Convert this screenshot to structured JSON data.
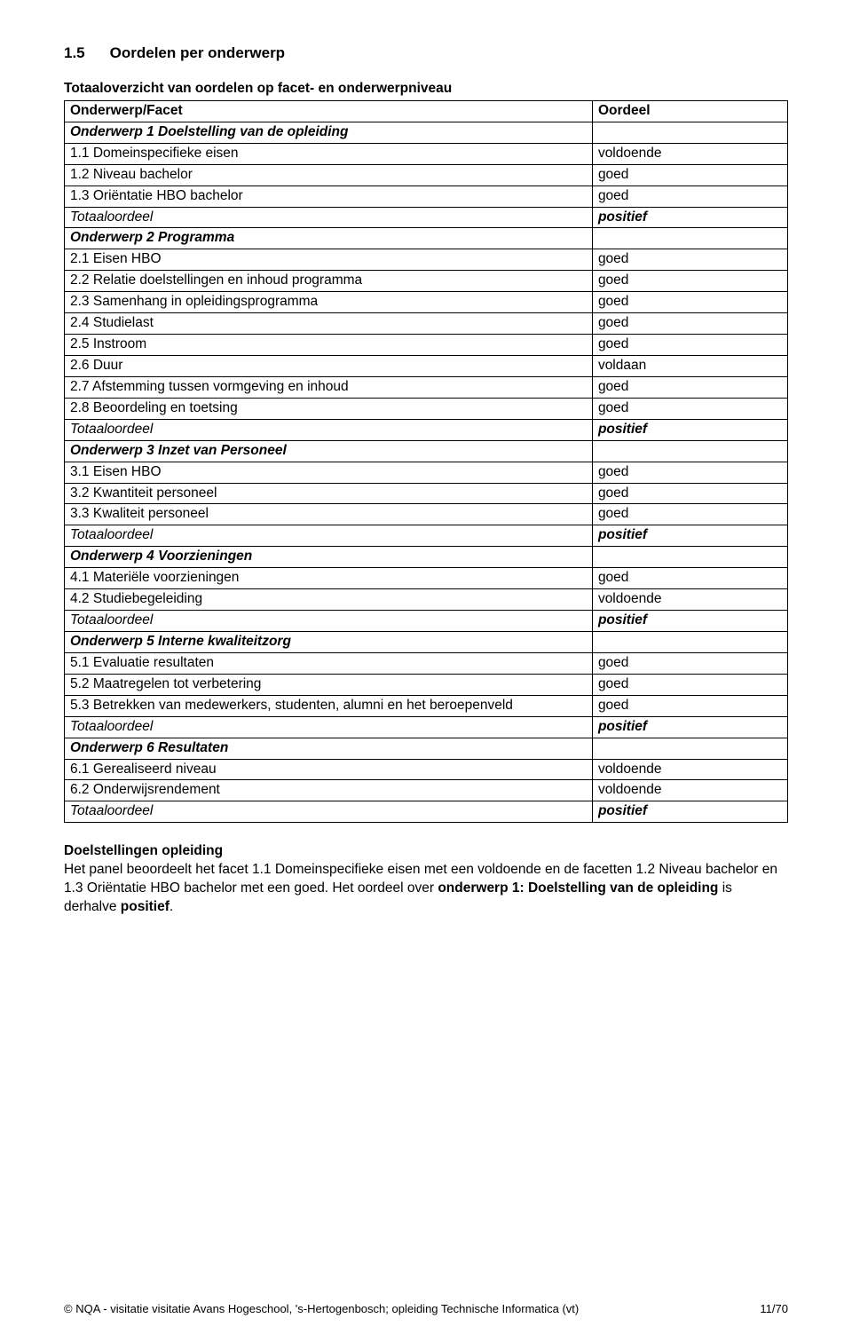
{
  "heading": {
    "num": "1.5",
    "title": "Oordelen per onderwerp"
  },
  "tableCaption": "Totaaloverzicht van oordelen op facet- en onderwerpniveau",
  "tableHeader": {
    "c1": "Onderwerp/Facet",
    "c2": "Oordeel"
  },
  "rows": [
    {
      "c1": "Onderwerp 1 Doelstelling van de opleiding",
      "c2": "",
      "c1cls": "bolditalic"
    },
    {
      "c1": "1.1 Domeinspecifieke eisen",
      "c2": "voldoende"
    },
    {
      "c1": "1.2 Niveau bachelor",
      "c2": "goed"
    },
    {
      "c1": "1.3 Oriëntatie HBO bachelor",
      "c2": "goed"
    },
    {
      "c1": "Totaaloordeel",
      "c2": "positief",
      "c1cls": "italic",
      "c2cls": "bolditalic"
    },
    {
      "c1": "Onderwerp 2 Programma",
      "c2": "",
      "c1cls": "bolditalic"
    },
    {
      "c1": "2.1 Eisen HBO",
      "c2": "goed"
    },
    {
      "c1": "2.2 Relatie doelstellingen en inhoud programma",
      "c2": "goed"
    },
    {
      "c1": "2.3 Samenhang in opleidingsprogramma",
      "c2": "goed"
    },
    {
      "c1": "2.4 Studielast",
      "c2": "goed"
    },
    {
      "c1": "2.5 Instroom",
      "c2": "goed"
    },
    {
      "c1": "2.6 Duur",
      "c2": "voldaan"
    },
    {
      "c1": "2.7 Afstemming tussen vormgeving en inhoud",
      "c2": "goed"
    },
    {
      "c1": "2.8 Beoordeling en toetsing",
      "c2": "goed"
    },
    {
      "c1": "Totaaloordeel",
      "c2": "positief",
      "c1cls": "italic",
      "c2cls": "bolditalic"
    },
    {
      "c1": "Onderwerp 3 Inzet van Personeel",
      "c2": "",
      "c1cls": "bolditalic"
    },
    {
      "c1": "3.1 Eisen HBO",
      "c2": "goed"
    },
    {
      "c1": "3.2 Kwantiteit personeel",
      "c2": "goed"
    },
    {
      "c1": "3.3 Kwaliteit personeel",
      "c2": "goed"
    },
    {
      "c1": "Totaaloordeel",
      "c2": "positief",
      "c1cls": "italic",
      "c2cls": "bolditalic"
    },
    {
      "c1": "Onderwerp 4 Voorzieningen",
      "c2": "",
      "c1cls": "bolditalic"
    },
    {
      "c1": "4.1 Materiële voorzieningen",
      "c2": "goed"
    },
    {
      "c1": "4.2 Studiebegeleiding",
      "c2": "voldoende"
    },
    {
      "c1": "Totaaloordeel",
      "c2": "positief",
      "c1cls": "italic",
      "c2cls": "bolditalic"
    },
    {
      "c1": "Onderwerp 5 Interne kwaliteitzorg",
      "c2": "",
      "c1cls": "bolditalic"
    },
    {
      "c1": "5.1 Evaluatie resultaten",
      "c2": "goed"
    },
    {
      "c1": "5.2 Maatregelen tot verbetering",
      "c2": "goed"
    },
    {
      "c1": "5.3 Betrekken van medewerkers, studenten, alumni en het beroepenveld",
      "c2": "goed"
    },
    {
      "c1": "Totaaloordeel",
      "c2": "positief",
      "c1cls": "italic",
      "c2cls": "bolditalic"
    },
    {
      "c1": "Onderwerp 6 Resultaten",
      "c2": "",
      "c1cls": "bolditalic"
    },
    {
      "c1": "6.1 Gerealiseerd niveau",
      "c2": "voldoende"
    },
    {
      "c1": "6.2 Onderwijsrendement",
      "c2": "voldoende"
    },
    {
      "c1": "Totaaloordeel",
      "c2": "positief",
      "c1cls": "italic",
      "c2cls": "bolditalic"
    }
  ],
  "bodyHeading": "Doelstellingen opleiding",
  "bodyParagraph": {
    "pieces": [
      {
        "t": "Het panel beoordeelt het facet 1.1 Domeinspecifieke eisen met een voldoende en de facetten 1.2 Niveau bachelor en 1.3 Oriëntatie HBO bachelor met een goed. Het oordeel over ",
        "cls": ""
      },
      {
        "t": "onderwerp 1: Doelstelling van de opleiding",
        "cls": "bold"
      },
      {
        "t": " is derhalve ",
        "cls": ""
      },
      {
        "t": "positief",
        "cls": "bold"
      },
      {
        "t": ".",
        "cls": ""
      }
    ]
  },
  "footer": {
    "left": "© NQA - visitatie visitatie Avans Hogeschool, 's-Hertogenbosch; opleiding Technische Informatica (vt)",
    "right": "11/70"
  }
}
